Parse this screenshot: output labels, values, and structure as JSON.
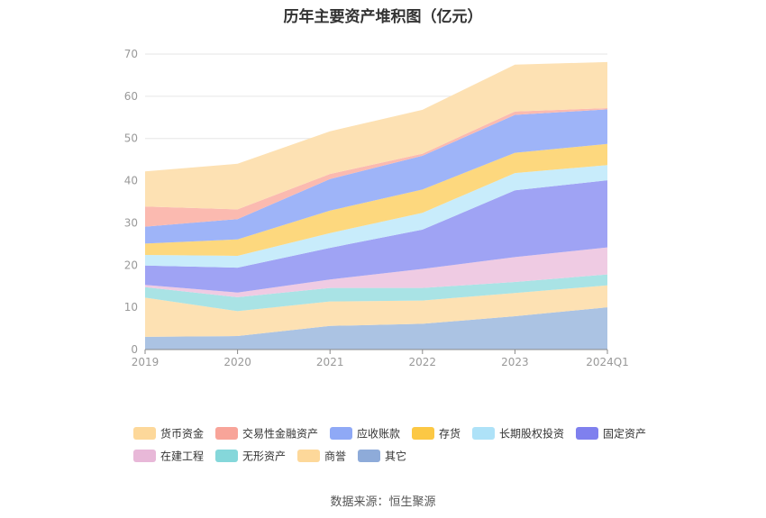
{
  "chart_data": {
    "type": "area",
    "stacked": true,
    "title": "历年主要资产堆积图（亿元）",
    "source": "数据来源：恒生聚源",
    "categories": [
      "2019",
      "2020",
      "2021",
      "2022",
      "2023",
      "2024Q1"
    ],
    "ylim": [
      0,
      70
    ],
    "yticks": [
      0,
      10,
      20,
      30,
      40,
      50,
      60,
      70
    ],
    "grid": true,
    "legend_position": "bottom",
    "series_order_bottom_to_top": [
      "其它",
      "商誉",
      "无形资产",
      "在建工程",
      "固定资产",
      "长期股权投资",
      "存货",
      "应收账款",
      "交易性金融资产",
      "货币资金"
    ],
    "series": [
      {
        "name": "货币资金",
        "color": "#fde1b3",
        "values": [
          8.3,
          10.8,
          10.1,
          10.4,
          11.1,
          10.9
        ]
      },
      {
        "name": "交易性金融资产",
        "color": "#fbbab0",
        "values": [
          4.8,
          2.3,
          1.2,
          0.5,
          0.8,
          0.3
        ]
      },
      {
        "name": "应收账款",
        "color": "#9eb4f8",
        "values": [
          4.0,
          4.8,
          7.5,
          8.0,
          9.0,
          8.2
        ]
      },
      {
        "name": "存货",
        "color": "#fdd87e",
        "values": [
          2.7,
          3.9,
          5.3,
          5.5,
          4.8,
          5.0
        ]
      },
      {
        "name": "长期股权投资",
        "color": "#c8ecfb",
        "values": [
          2.5,
          2.8,
          3.5,
          4.0,
          4.1,
          3.6
        ]
      },
      {
        "name": "固定资产",
        "color": "#9fa3f4",
        "values": [
          4.6,
          5.9,
          7.5,
          9.3,
          15.8,
          15.9
        ]
      },
      {
        "name": "在建工程",
        "color": "#efcbe3",
        "values": [
          0.5,
          1.1,
          2.0,
          4.5,
          5.9,
          6.4
        ]
      },
      {
        "name": "无形资产",
        "color": "#a9e3e5",
        "values": [
          2.5,
          3.3,
          3.2,
          3.0,
          2.6,
          2.6
        ]
      },
      {
        "name": "商誉",
        "color": "#fde1b3",
        "values": [
          9.3,
          5.9,
          5.8,
          5.5,
          5.5,
          5.2
        ]
      },
      {
        "name": "其它",
        "color": "#abc3e3",
        "values": [
          3.0,
          3.2,
          5.6,
          6.1,
          7.9,
          10.0
        ]
      }
    ],
    "legend": [
      {
        "name": "货币资金",
        "color": "#fdd89a"
      },
      {
        "name": "交易性金融资产",
        "color": "#f8a499"
      },
      {
        "name": "应收账款",
        "color": "#8fa9f6"
      },
      {
        "name": "存货",
        "color": "#fcc844"
      },
      {
        "name": "长期股权投资",
        "color": "#aee2f8"
      },
      {
        "name": "固定资产",
        "color": "#7f80ee"
      },
      {
        "name": "在建工程",
        "color": "#e8b8d8"
      },
      {
        "name": "无形资产",
        "color": "#85d7da"
      },
      {
        "name": "商誉",
        "color": "#fdd89a"
      },
      {
        "name": "其它",
        "color": "#8eabd9"
      }
    ]
  }
}
